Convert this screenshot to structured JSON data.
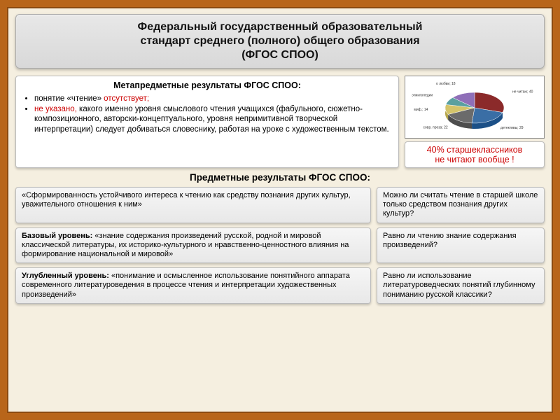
{
  "header": {
    "line1": "Федеральный государственный образовательный",
    "line2": "стандарт среднего (полного) общего образования",
    "line3": "(ФГОС СПОО)"
  },
  "meta": {
    "title": "Метапредметные результаты ФГОС СПОО:",
    "bullet1_pre": "понятие «чтение» ",
    "bullet1_red": "отсутствует;",
    "bullet2_red": "не указано,",
    "bullet2_rest": " какого именно уровня смыслового чтения учащихся (фабульного, сюжетно-композиционного, авторски-концептуального, уровня непримитивной творческой интерпретации) следует добиваться словеснику, работая на уроке с художественным текстом."
  },
  "chart": {
    "type": "pie",
    "slices": [
      {
        "label": "не читаю; 40",
        "value": 40,
        "color": "#8b2a2a"
      },
      {
        "label": "детективы; 29",
        "value": 29,
        "color": "#3a6ea5"
      },
      {
        "label": "совр. проза; 22",
        "value": 22,
        "color": "#6b6b6b"
      },
      {
        "label": "миф.; 14",
        "value": 14,
        "color": "#d4c46a"
      },
      {
        "label": "эпиклопедии",
        "value": 11,
        "color": "#5aa0a0"
      },
      {
        "label": "о любви; 18",
        "value": 18,
        "color": "#8f6fb8"
      }
    ],
    "background": "#ffffff",
    "caption_line1": "40% старшеклассников",
    "caption_line2": "не читают вообще !"
  },
  "subheader": "Предметные результаты ФГОС СПОО:",
  "pairs": [
    {
      "left": "«Сформированность устойчивого интереса к чтению как средству познания других культур, уважительного отношения к ним»",
      "right": "Можно ли считать чтение в старшей школе только средством познания других культур?"
    },
    {
      "left_bold": "Базовый уровень: ",
      "left": "«знание содержания произведений русской, родной и мировой классической литературы, их историко-культурного и нравственно-ценностного влияния на формирование национальной и мировой»",
      "right": "Равно ли чтению знание содержания произведений?"
    },
    {
      "left_bold": "Углубленный уровень: ",
      "left": "«понимание и осмысленное использование понятийного аппарата современного литературоведения в процессе чтения и интерпретации художественных произведений»",
      "right": "Равно ли использование литературоведческих понятий глубинному пониманию русской классики?"
    }
  ],
  "colors": {
    "frame_outer": "#b8651a",
    "frame_inner": "#f5efe0",
    "red": "#c00"
  }
}
